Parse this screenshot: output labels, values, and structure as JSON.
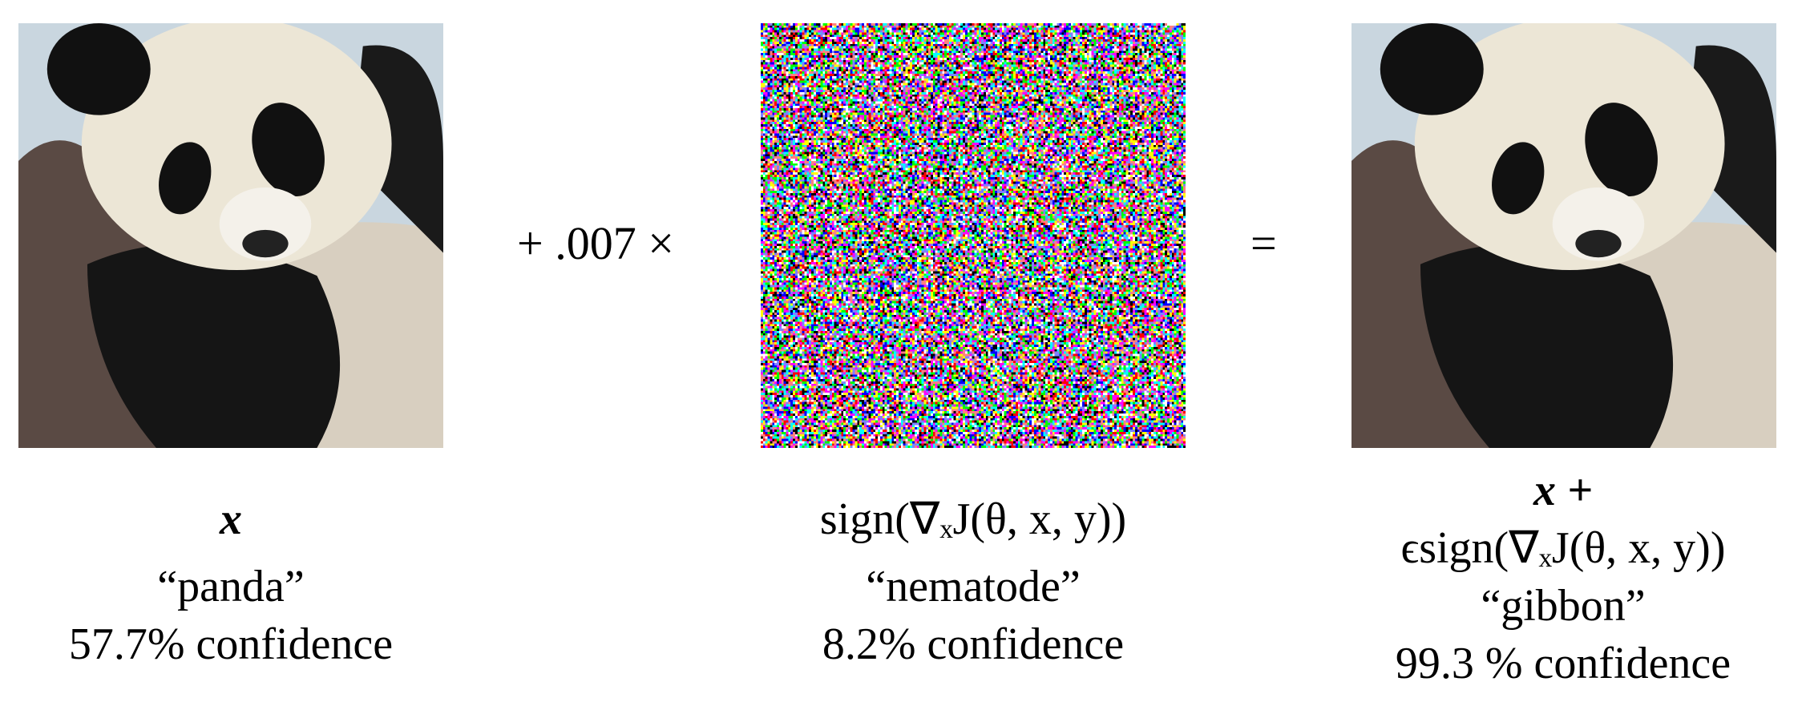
{
  "figure": {
    "operator_plus": "+ .007 ×",
    "operator_equals": "=",
    "panels": [
      {
        "expression": "x",
        "label": "“panda”",
        "confidence": "57.7% confidence"
      },
      {
        "expression": "sign(∇ₓJ(θ, x, y))",
        "label": "“nematode”",
        "confidence": "8.2% confidence"
      },
      {
        "expression_line1": "x +",
        "expression_line2": "ϵsign(∇ₓJ(θ, x, y))",
        "label": "“gibbon”",
        "confidence": "99.3 % confidence"
      }
    ]
  }
}
